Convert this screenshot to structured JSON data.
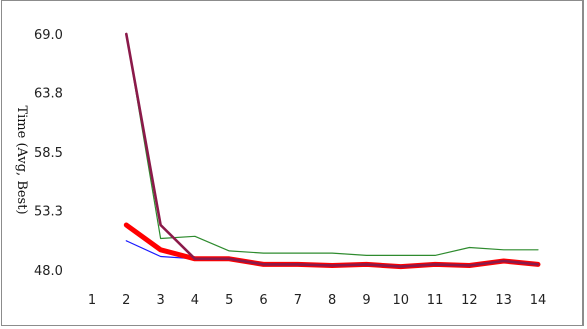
{
  "chart_data": {
    "type": "line",
    "title": "",
    "xlabel": "",
    "ylabel": "Time (Avg, Best)",
    "x": [
      1,
      2,
      3,
      4,
      5,
      6,
      7,
      8,
      9,
      10,
      11,
      12,
      13,
      14
    ],
    "x_ticks": [
      "1",
      "2",
      "3",
      "4",
      "5",
      "6",
      "7",
      "8",
      "9",
      "10",
      "11",
      "12",
      "13",
      "14"
    ],
    "y_ticks": [
      "69.0",
      "63.8",
      "58.5",
      "53.3",
      "48.0"
    ],
    "ylim": [
      48.0,
      69.0
    ],
    "grid": false,
    "series": [
      {
        "color": "#2e8b2e",
        "values": [
          null,
          69.0,
          50.8,
          51.0,
          49.7,
          49.5,
          49.5,
          49.5,
          49.3,
          49.3,
          49.3,
          50.0,
          49.8,
          49.8
        ]
      },
      {
        "color": "#1a1aff",
        "values": [
          null,
          50.6,
          49.2,
          49.0,
          49.0,
          48.5,
          48.5,
          48.4,
          48.5,
          48.3,
          48.5,
          48.4,
          48.8,
          48.5
        ]
      },
      {
        "color": "#ff0000",
        "values": [
          null,
          52.0,
          49.8,
          49.0,
          49.0,
          48.5,
          48.5,
          48.4,
          48.5,
          48.3,
          48.5,
          48.4,
          48.8,
          48.5
        ]
      },
      {
        "color": "#8b1a4a",
        "values": [
          null,
          69.0,
          52.0,
          49.0,
          49.0,
          48.5,
          48.5,
          48.4,
          48.5,
          48.3,
          48.5,
          48.4,
          48.8,
          48.5
        ]
      }
    ]
  }
}
